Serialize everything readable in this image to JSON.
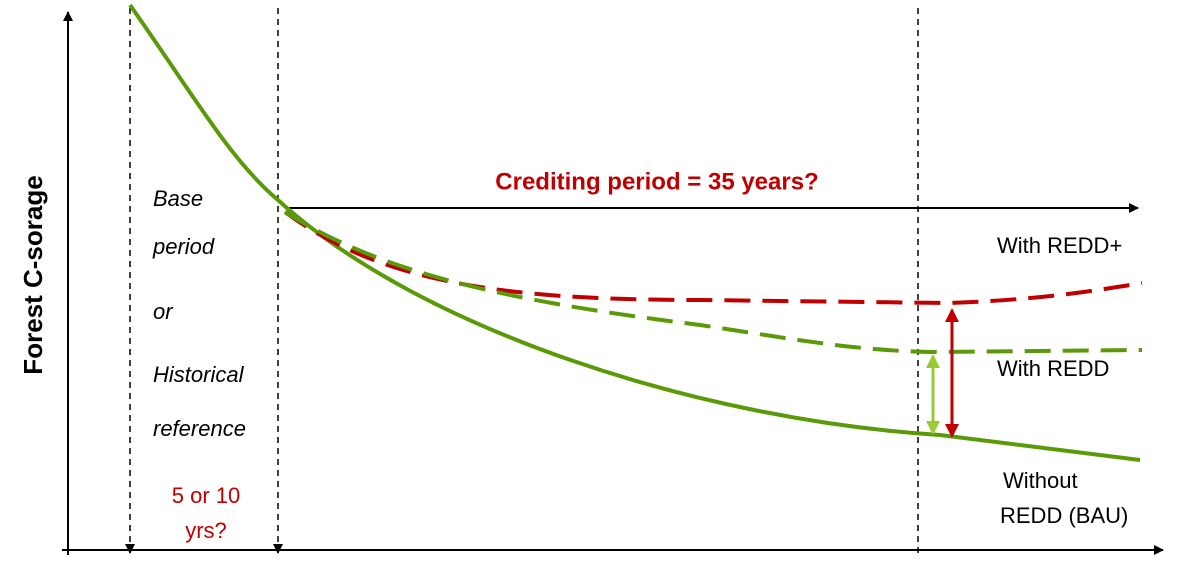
{
  "y_axis_label": "Forest C-sorage",
  "crediting_period": "Crediting period = 35 years?",
  "base_period_lines": [
    "Base",
    "period",
    "or",
    "Historical",
    "reference"
  ],
  "duration_lines": [
    "5 or 10",
    "yrs?"
  ],
  "curves": [
    {
      "label_lines": [
        "With REDD+"
      ]
    },
    {
      "label_lines": [
        "With REDD"
      ]
    },
    {
      "label_lines": [
        "Without",
        "REDD (BAU)"
      ]
    }
  ]
}
